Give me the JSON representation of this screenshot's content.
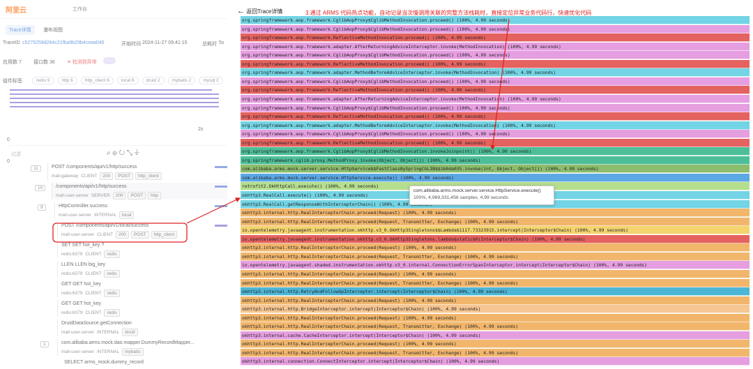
{
  "left": {
    "logo": "阿里云",
    "workbench": "工作台",
    "tabs": [
      "Trace详情",
      "瀑布视图"
    ],
    "trace_id_label": "TraceID",
    "trace_id": "c5279259d264c21fba9b29b4ceaa046",
    "start_label": "开始时间",
    "start_time": "2024-11-27 09:41:15",
    "duration_label": "总耗时",
    "duration": "5s",
    "app_count": "应用数 7",
    "api_count": "接口数 36",
    "error": "检测到异常",
    "component_label": "组件标签",
    "components": [
      "redis 9",
      "http 6",
      "http_client 6",
      "local 6",
      "druid 2",
      "mybatis 2",
      "mysql 2"
    ],
    "timeline_tick": "2s",
    "zero_top": "0",
    "zero_bottom": "0",
    "filter": "过滤",
    "tree": [
      {
        "count": "11",
        "title": "POST /components/api/v1/http/success",
        "tags": [
          "mall-gateway",
          "CLIENT",
          "200",
          "POST",
          "http_client"
        ]
      },
      {
        "count": "10",
        "title": "/components/api/v1/http/success",
        "tags": [
          "mall-user-server",
          "SERVER",
          "200",
          "POST",
          "http"
        ]
      },
      {
        "count": "9",
        "title": "HttpController.success",
        "tags": [
          "mall-user-server",
          "INTERNAL",
          "local"
        ]
      },
      {
        "count": null,
        "title": "POST /components/api/v1/local/success",
        "tags": [
          "mall-user-server",
          "CLIENT",
          "200",
          "POST",
          "http_client"
        ]
      },
      {
        "count": null,
        "title": "SET  SET hot_key ?",
        "tags": [
          "redis:6379",
          "CLIENT",
          "redis"
        ]
      },
      {
        "count": null,
        "title": "LLEN  LLEN big_key",
        "tags": [
          "redis:6379",
          "CLIENT",
          "redis"
        ]
      },
      {
        "count": null,
        "title": "GET  GET hot_key",
        "tags": [
          "redis:6379",
          "CLIENT",
          "redis"
        ]
      },
      {
        "count": null,
        "title": "GET  GET hot_key",
        "tags": [
          "redis:6379",
          "CLIENT",
          "redis"
        ]
      },
      {
        "count": null,
        "title": "DruidDataSource.getConnection",
        "tags": [
          "mall-user-server",
          "INTERNAL",
          "druid"
        ]
      },
      {
        "count": "1",
        "title": "com.alibaba.arms.mock.dao.mapper.DummyRecordMapper...",
        "tags": [
          "mall-user-server",
          "INTERNAL",
          "mybatis"
        ]
      },
      {
        "count": null,
        "title": "SELECT arms_mock.dummy_record",
        "tags": []
      }
    ]
  },
  "right": {
    "back": "返回Trace详情",
    "annotation": "3.通过 ARMS 代码热点功能，自动记录当次慢调用关联的完整方法栈耗时，直接定位异常业务代码行，快速优化代码",
    "tooltip": {
      "title": "com.alibaba.arms.mock.server.service.HttpService.execute()",
      "detail": "100%, 4,969,331,456 samples, 4.99 seconds"
    },
    "flame": [
      {
        "label": "org.springframework.aop.framework.CglibAopProxy$CglibMethodInvocation.proceed() (100%, 4.99 seconds)",
        "color": "#72d4e4"
      },
      {
        "label": "org.springframework.aop.framework.CglibAopProxy$CglibMethodInvocation.proceed() (100%, 4.99 seconds)",
        "color": "#e59ee0"
      },
      {
        "label": "org.springframework.aop.framework.ReflectiveMethodInvocation.proceed() (100%, 4.99 seconds)",
        "color": "#e4625f"
      },
      {
        "label": "org.springframework.aop.framework.adapter.AfterReturningAdviceInterceptor.invoke(MethodInvocation) (100%, 4.99 seconds)",
        "color": "#e59ee0"
      },
      {
        "label": "org.springframework.aop.framework.CglibAopProxy$CglibMethodInvocation.proceed() (100%, 4.99 seconds)",
        "color": "#e59ee0"
      },
      {
        "label": "org.springframework.aop.framework.ReflectiveMethodInvocation.proceed() (100%, 4.99 seconds)",
        "color": "#e4625f"
      },
      {
        "label": "org.springframework.aop.framework.adapter.MethodBeforeAdviceInterceptor.invoke(MethodInvocation) (100%, 4.99 seconds)",
        "color": "#72d4e4"
      },
      {
        "label": "org.springframework.aop.framework.CglibAopProxy$CglibMethodInvocation.proceed() (100%, 4.99 seconds)",
        "color": "#e59ee0"
      },
      {
        "label": "org.springframework.aop.framework.ReflectiveMethodInvocation.proceed() (100%, 4.99 seconds)",
        "color": "#e4625f"
      },
      {
        "label": "org.springframework.aop.framework.adapter.AfterReturningAdviceInterceptor.invoke(MethodInvocation) (100%, 4.99 seconds)",
        "color": "#e59ee0"
      },
      {
        "label": "org.springframework.aop.framework.CglibAopProxy$CglibMethodInvocation.proceed() (100%, 4.99 seconds)",
        "color": "#e59ee0"
      },
      {
        "label": "org.springframework.aop.framework.ReflectiveMethodInvocation.proceed() (100%, 4.99 seconds)",
        "color": "#e4625f"
      },
      {
        "label": "org.springframework.aop.framework.adapter.MethodBeforeAdviceInterceptor.invoke(MethodInvocation) (100%, 4.99 seconds)",
        "color": "#72d4e4"
      },
      {
        "label": "org.springframework.aop.framework.CglibAopProxy$CglibMethodInvocation.proceed() (100%, 4.99 seconds)",
        "color": "#e59ee0"
      },
      {
        "label": "org.springframework.aop.framework.ReflectiveMethodInvocation.proceed() (100%, 4.99 seconds)",
        "color": "#e4625f"
      },
      {
        "label": "org.springframework.aop.framework.CglibAopProxy$CglibMethodInvocation.invokeJoinpoint() (100%, 4.99 seconds)",
        "color": "#4dbf98"
      },
      {
        "label": "org.springframework.cglib.proxy.MethodProxy.invoke(Object, Object[]) (100%, 4.99 seconds)",
        "color": "#4dbf98"
      },
      {
        "label": "com.alibaba.arms.mock.server.service.HttpService$$FastClassBySpringCGLIB$$1b0da035.invoke(int, Object, Object[]) (100%, 4.99 seconds)",
        "color": "#8dbd6c"
      },
      {
        "label": "com.alibaba.arms.mock.server.service.HttpService.execute() (100%, 4.99 seconds)",
        "color": "#5ba8e4"
      },
      {
        "label": "retrofit2.OkHttpCall.execute() (100%, 4.99 seconds)",
        "color": "#b5de8e"
      },
      {
        "label": "okhttp3.RealCall.execute() (100%, 4.99 seconds)",
        "color": "#72d4e4"
      },
      {
        "label": "okhttp3.RealCall.getResponseWithInterceptorChain() (100%, 4.99 seconds)",
        "color": "#72d4e4"
      },
      {
        "label": "okhttp3.internal.http.RealInterceptorChain.proceed(Request) (100%, 4.99 seconds)",
        "color": "#f1b66c"
      },
      {
        "label": "okhttp3.internal.http.RealInterceptorChain.proceed(Request, Transmitter, Exchange) (100%, 4.99 seconds)",
        "color": "#f1b66c"
      },
      {
        "label": "io.opentelemetry.javaagent.instrumentation.okhttp.v3_0.OkHttp3Singletons$$Lambda$1117.73323915.intercept(Interceptor$Chain) (100%, 4.99 seconds)",
        "color": "#f3d46f"
      },
      {
        "label": "io.opentelemetry.javaagent.instrumentation.okhttp.v3_0.OkHttp3Singletons.lambda$static$0(Interceptor$Chain) (100%, 4.99 seconds)",
        "color": "#e4625f"
      },
      {
        "label": "okhttp3.internal.http.RealInterceptorChain.proceed(Request) (100%, 4.99 seconds)",
        "color": "#f1b66c"
      },
      {
        "label": "okhttp3.internal.http.RealInterceptorChain.proceed(Request, Transmitter, Exchange) (100%, 4.99 seconds)",
        "color": "#f1b66c"
      },
      {
        "label": "io.opentelemetry.javaagent.shaded.instrumentation.okhttp.v3_0.internal.ConnectionErrorSpanInterceptor.intercept(Interceptor$Chain) (100%, 4.99 seconds)",
        "color": "#e59ee0"
      },
      {
        "label": "okhttp3.internal.http.RealInterceptorChain.proceed(Request) (100%, 4.99 seconds)",
        "color": "#f1b66c"
      },
      {
        "label": "okhttp3.internal.http.RealInterceptorChain.proceed(Request, Transmitter, Exchange) (100%, 4.99 seconds)",
        "color": "#f1b66c"
      },
      {
        "label": "okhttp3.internal.http.RetryAndFollowUpInterceptor.intercept(Interceptor$Chain) (100%, 4.99 seconds)",
        "color": "#4db6d6"
      },
      {
        "label": "okhttp3.internal.http.RealInterceptorChain.proceed(Request) (100%, 4.99 seconds)",
        "color": "#f1b66c"
      },
      {
        "label": "okhttp3.internal.http.BridgeInterceptor.intercept(Interceptor$Chain) (100%, 4.99 seconds)",
        "color": "#f6c692"
      },
      {
        "label": "okhttp3.internal.http.RealInterceptorChain.proceed(Request) (100%, 4.99 seconds)",
        "color": "#f1b66c"
      },
      {
        "label": "okhttp3.internal.http.RealInterceptorChain.proceed(Request, Transmitter, Exchange) (100%, 4.99 seconds)",
        "color": "#f1b66c"
      },
      {
        "label": "okhttp3.internal.cache.CacheInterceptor.intercept(Interceptor$Chain) (100%, 4.99 seconds)",
        "color": "#e59ee0"
      },
      {
        "label": "okhttp3.internal.http.RealInterceptorChain.proceed(Request) (100%, 4.99 seconds)",
        "color": "#f1b66c"
      },
      {
        "label": "okhttp3.internal.http.RealInterceptorChain.proceed(Request, Transmitter, Exchange) (100%, 4.99 seconds)",
        "color": "#f1b66c"
      },
      {
        "label": "okhttp3.internal.connection.ConnectInterceptor.intercept(Interceptor$Chain) (100%, 4.99 seconds)",
        "color": "#e59ee0"
      }
    ]
  }
}
